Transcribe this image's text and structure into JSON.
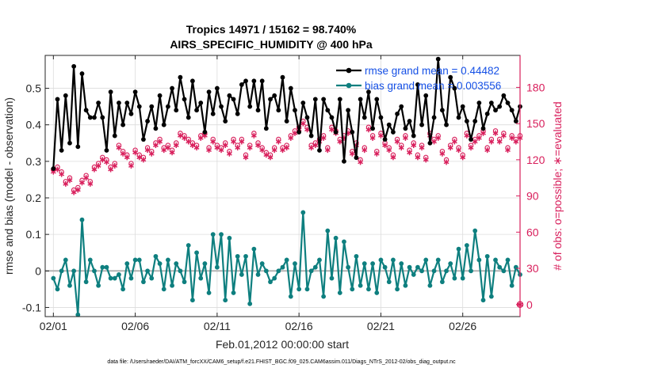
{
  "chart_data": {
    "type": "line",
    "title_line1": "Tropics 14971 / 15162 = 98.740%",
    "title_line2": "AIRS_SPECIFIC_HUMIDITY @ 400 hPa",
    "xlabel": "Feb.01,2012 00:00:00 start",
    "ylabel_left": "rmse and bias (model - observation)",
    "ylabel_right": "# of obs: o=possible; ∗=evaluated",
    "footer": "data file: /Users/raeder/DAI/ATM_forcXX/CAM6_setup/f.e21.FHIST_BGC.f09_025.CAM6assim.011/Diags_NTrS_2012-02/obs_diag_output.nc",
    "xlim": [
      0.5,
      29.5
    ],
    "ylim_left": [
      -0.125,
      0.59
    ],
    "ylim_right": [
      -10,
      206.5
    ],
    "x_tick_values": [
      1,
      6,
      11,
      16,
      21,
      26
    ],
    "x_tick_labels": [
      "02/01",
      "02/06",
      "02/11",
      "02/16",
      "02/21",
      "02/26"
    ],
    "y_left_ticks": [
      -0.1,
      0,
      0.1,
      0.2,
      0.3,
      0.4,
      0.5
    ],
    "y_left_tick_labels": [
      "-0.1",
      "0",
      "0.1",
      "0.2",
      "0.3",
      "0.4",
      "0.5"
    ],
    "y_right_ticks": [
      0,
      30,
      60,
      90,
      120,
      150,
      180
    ],
    "y_right_tick_labels": [
      "0",
      "30",
      "60",
      "90",
      "120",
      "150",
      "180"
    ],
    "legend_placement": "top-right",
    "colors": {
      "rmse": "#000000",
      "bias": "#0e7f7f",
      "obs": "#d81e5b",
      "zero_line": "#b4b4b4",
      "legend_text": "#1550e6",
      "axis": "#262626",
      "grid": "#dcdcdc"
    },
    "x_step": 0.25,
    "x_start": 1,
    "series": [
      {
        "name": "rmse grand mean = 0.44482",
        "legend_label": "rmse grand mean = 0.44482",
        "axis": "left",
        "values": [
          0.28,
          0.47,
          0.33,
          0.48,
          0.35,
          0.56,
          0.34,
          0.54,
          0.44,
          0.42,
          0.42,
          0.46,
          0.42,
          0.33,
          0.49,
          0.37,
          0.46,
          0.4,
          0.46,
          0.43,
          0.49,
          0.45,
          0.36,
          0.41,
          0.45,
          0.39,
          0.48,
          0.4,
          0.45,
          0.5,
          0.44,
          0.53,
          0.47,
          0.42,
          0.52,
          0.44,
          0.46,
          0.38,
          0.49,
          0.43,
          0.5,
          0.45,
          0.41,
          0.48,
          0.47,
          0.43,
          0.51,
          0.52,
          0.45,
          0.52,
          0.44,
          0.52,
          0.39,
          0.47,
          0.48,
          0.44,
          0.53,
          0.41,
          0.5,
          0.44,
          0.38,
          0.46,
          0.42,
          0.37,
          0.47,
          0.33,
          0.47,
          0.44,
          0.42,
          0.38,
          0.47,
          0.3,
          0.44,
          0.38,
          0.31,
          0.47,
          0.42,
          0.49,
          0.39,
          0.47,
          0.42,
          0.36,
          0.4,
          0.38,
          0.43,
          0.45,
          0.39,
          0.41,
          0.37,
          0.51,
          0.4,
          0.48,
          0.35,
          0.42,
          0.58,
          0.44,
          0.4,
          0.53,
          0.5,
          0.42,
          0.45,
          0.41,
          0.36,
          0.41,
          0.46,
          0.39,
          0.43,
          0.46,
          0.44,
          0.45,
          0.48,
          0.46,
          0.44,
          0.41,
          0.45
        ]
      },
      {
        "name": "bias grand mean = 0.003556",
        "legend_label": "bias grand mean = 0.003556",
        "axis": "left",
        "values": [
          -0.02,
          -0.05,
          0.0,
          0.03,
          -0.04,
          0.0,
          -0.12,
          0.14,
          -0.03,
          0.03,
          0.0,
          -0.04,
          0.01,
          0.01,
          -0.02,
          -0.02,
          -0.01,
          -0.05,
          0.02,
          -0.02,
          0.03,
          0.03,
          -0.03,
          0.0,
          -0.02,
          0.04,
          0.02,
          -0.05,
          0.03,
          -0.04,
          0.02,
          0.0,
          -0.03,
          0.07,
          -0.08,
          0.05,
          -0.02,
          0.02,
          -0.06,
          0.1,
          0.01,
          0.1,
          -0.08,
          0.09,
          -0.06,
          0.04,
          -0.01,
          0.04,
          -0.09,
          0.06,
          -0.01,
          0.02,
          0.0,
          -0.03,
          -0.02,
          0.0,
          0.01,
          0.03,
          -0.07,
          0.02,
          -0.05,
          0.16,
          -0.05,
          0.0,
          0.01,
          0.03,
          -0.07,
          0.11,
          -0.02,
          0.09,
          -0.06,
          0.08,
          0.01,
          -0.05,
          0.04,
          -0.04,
          0.02,
          -0.05,
          0.02,
          -0.06,
          0.03,
          0.01,
          -0.03,
          0.03,
          -0.05,
          0.02,
          -0.04,
          0.01,
          -0.01,
          0.01,
          0.0,
          0.03,
          -0.04,
          0.0,
          0.03,
          -0.03,
          0.0,
          0.02,
          -0.02,
          0.06,
          -0.02,
          0.07,
          0.0,
          0.11,
          0.03,
          -0.08,
          0.04,
          -0.07,
          0.03,
          0.01,
          0.0,
          0.03,
          -0.04,
          0.01,
          -0.01
        ]
      },
      {
        "name": "obs evaluated",
        "axis": "right",
        "marker": "asterisk",
        "values": [
          110,
          112,
          108,
          100,
          103,
          93,
          95,
          101,
          105,
          100,
          112,
          115,
          120,
          118,
          112,
          115,
          130,
          125,
          122,
          115,
          126,
          122,
          120,
          128,
          125,
          132,
          135,
          128,
          130,
          126,
          132,
          140,
          138,
          135,
          132,
          130,
          138,
          140,
          128,
          135,
          130,
          128,
          132,
          125,
          135,
          130,
          135,
          122,
          130,
          140,
          132,
          128,
          124,
          122,
          128,
          135,
          128,
          130,
          138,
          142,
          145,
          150,
          145,
          130,
          132,
          135,
          138,
          128,
          145,
          142,
          135,
          138,
          142,
          125,
          132,
          118,
          128,
          145,
          138,
          125,
          140,
          132,
          128,
          122,
          135,
          130,
          138,
          126,
          132,
          122,
          130,
          120,
          140,
          135,
          138,
          125,
          118,
          130,
          135,
          128,
          122,
          140,
          130,
          135,
          138,
          142,
          128,
          135,
          142,
          135,
          140,
          128,
          138,
          135,
          138
        ]
      },
      {
        "name": "obs possible",
        "axis": "right",
        "marker": "circle",
        "values": [
          112,
          114,
          110,
          102,
          105,
          95,
          97,
          103,
          107,
          102,
          114,
          117,
          122,
          120,
          114,
          117,
          132,
          127,
          124,
          117,
          128,
          124,
          122,
          130,
          127,
          134,
          137,
          130,
          132,
          128,
          134,
          142,
          140,
          137,
          134,
          132,
          140,
          142,
          130,
          137,
          132,
          130,
          134,
          127,
          137,
          132,
          137,
          124,
          132,
          142,
          134,
          130,
          126,
          124,
          130,
          137,
          130,
          132,
          140,
          144,
          147,
          152,
          147,
          132,
          134,
          137,
          140,
          130,
          147,
          144,
          137,
          140,
          144,
          127,
          134,
          120,
          130,
          147,
          140,
          127,
          142,
          134,
          130,
          124,
          137,
          132,
          140,
          128,
          134,
          124,
          132,
          122,
          142,
          137,
          140,
          127,
          120,
          132,
          137,
          130,
          124,
          142,
          132,
          137,
          140,
          144,
          130,
          137,
          144,
          137,
          142,
          130,
          140,
          137,
          140
        ]
      }
    ]
  }
}
